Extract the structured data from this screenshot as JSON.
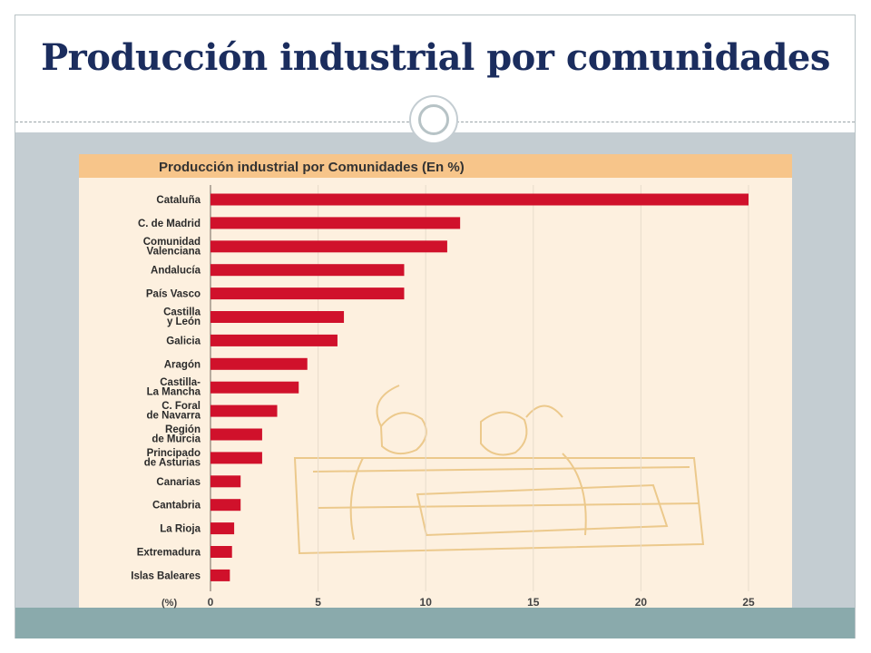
{
  "slide": {
    "title": "Producción industrial por comunidades"
  },
  "colors": {
    "title": "#1b2d5e",
    "content_band": "#c4cdd2",
    "footer_band": "#8aaaac",
    "chart_header": "#f7c58a",
    "chart_background": "#fdf0df",
    "bar": "#d0112b",
    "illustration": "#ecc98c"
  },
  "chart_data": {
    "type": "bar",
    "orientation": "horizontal",
    "title": "Producción industrial por Comunidades (En %)",
    "xlabel": "(%)",
    "ylabel": "",
    "xlim": [
      0,
      25
    ],
    "xticks": [
      0,
      5,
      10,
      15,
      20,
      25
    ],
    "grid": true,
    "categories": [
      "Cataluña",
      "C. de Madrid",
      "Comunidad Valenciana",
      "Andalucía",
      "País Vasco",
      "Castilla y León",
      "Galicia",
      "Aragón",
      "Castilla-La Mancha",
      "C. Foral de Navarra",
      "Región de Murcia",
      "Principado de Asturias",
      "Canarias",
      "Cantabria",
      "La Rioja",
      "Extremadura",
      "Islas Baleares"
    ],
    "category_lines": [
      [
        "Cataluña"
      ],
      [
        "C. de Madrid"
      ],
      [
        "Comunidad",
        "Valenciana"
      ],
      [
        "Andalucía"
      ],
      [
        "País Vasco"
      ],
      [
        "Castilla",
        "y León"
      ],
      [
        "Galicia"
      ],
      [
        "Aragón"
      ],
      [
        "Castilla-",
        "La Mancha"
      ],
      [
        "C. Foral",
        "de Navarra"
      ],
      [
        "Región",
        "de Murcia"
      ],
      [
        "Principado",
        "de Asturias"
      ],
      [
        "Canarias"
      ],
      [
        "Cantabria"
      ],
      [
        "La Rioja"
      ],
      [
        "Extremadura"
      ],
      [
        "Islas Baleares"
      ]
    ],
    "values": [
      25.0,
      11.6,
      11.0,
      9.0,
      9.0,
      6.2,
      5.9,
      4.5,
      4.1,
      3.1,
      2.4,
      2.4,
      1.4,
      1.4,
      1.1,
      1.0,
      0.9
    ]
  }
}
